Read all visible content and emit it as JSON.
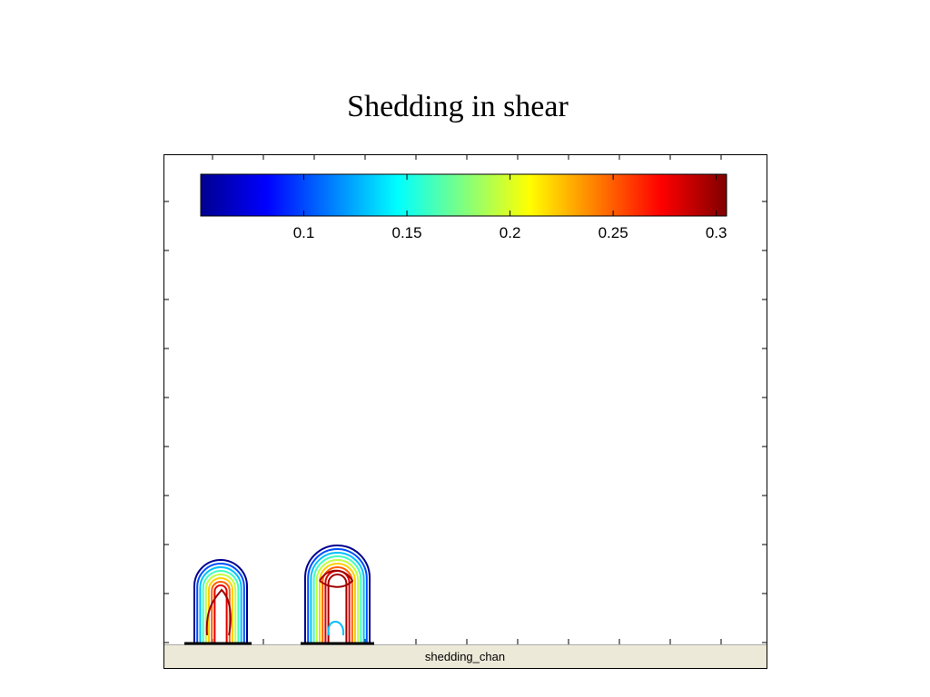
{
  "chart_data": {
    "type": "contour",
    "title": "Shedding in shear",
    "colorbar": {
      "clim": [
        0.05,
        0.305
      ],
      "ticks": [
        0.1,
        0.15,
        0.2,
        0.25,
        0.3
      ],
      "colormap": "jet"
    },
    "footer": "shedding_chan"
  }
}
